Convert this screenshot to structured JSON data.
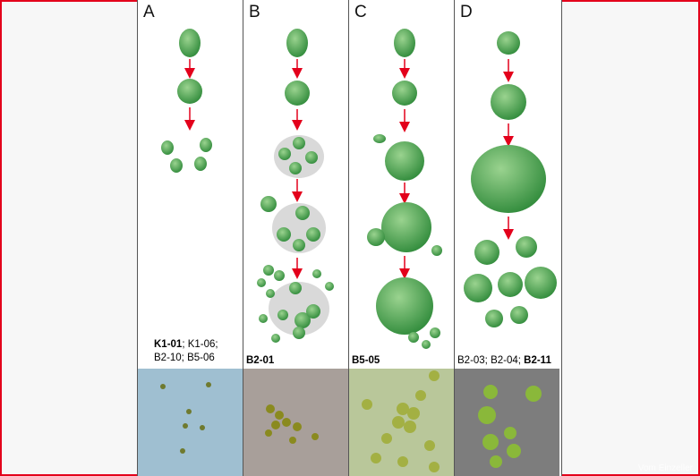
{
  "panels": [
    {
      "letter": "A",
      "caption_parts": [
        {
          "text": "K1-01",
          "bold": true
        },
        {
          "text": "; K1-06;",
          "bold": false
        },
        {
          "text": "B2-10; B5-06",
          "bold": false,
          "newline": true
        }
      ]
    },
    {
      "letter": "B",
      "caption_parts": [
        {
          "text": "B2-01",
          "bold": true
        }
      ]
    },
    {
      "letter": "C",
      "caption_parts": [
        {
          "text": "B5-05",
          "bold": true
        }
      ]
    },
    {
      "letter": "D",
      "caption_parts": [
        {
          "text": "B2-03; B2-04; ",
          "bold": false
        },
        {
          "text": "B2-11",
          "bold": true
        }
      ]
    }
  ],
  "watermark": "Vom Einzeller",
  "colors": {
    "border": "#e3001b",
    "arrow": "#e3001b",
    "cell": "#5bb75b",
    "cell_dark": "#2f8a3a",
    "mucilage": "#d9d9d9",
    "photo_a": "#9fbfd1",
    "photo_b": "#a89f9a",
    "photo_c": "#b9c79a",
    "photo_d": "#7d7d7d"
  }
}
